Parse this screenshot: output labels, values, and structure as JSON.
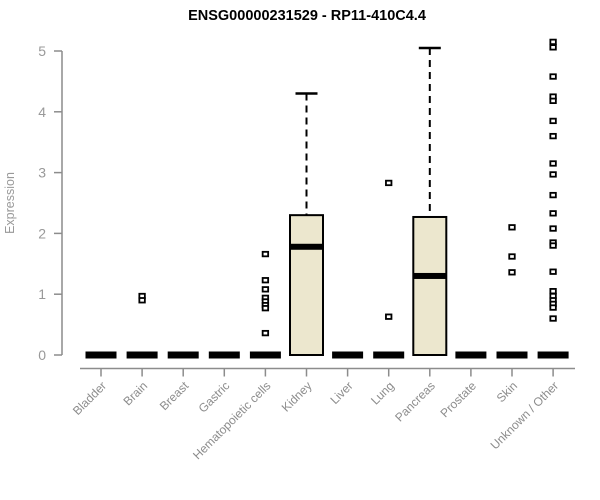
{
  "chart_data": {
    "type": "box",
    "title": "ENSG00000231529 - RP11-410C4.4",
    "ylabel": "Expression",
    "xlabel": "",
    "ylim": [
      0,
      5
    ],
    "y_ticks": [
      0,
      1,
      2,
      3,
      4,
      5
    ],
    "grid": "off",
    "x_tick_rotation": 45,
    "categories": [
      "Bladder",
      "Brain",
      "Breast",
      "Gastric",
      "Hematopoietic cells",
      "Kidney",
      "Liver",
      "Lung",
      "Pancreas",
      "Prostate",
      "Skin",
      "Unknown / Other"
    ],
    "boxes": [
      {
        "category": "Bladder",
        "q1": 0,
        "median": 0,
        "q3": 0,
        "whisker_low": 0,
        "whisker_high": 0,
        "outliers": []
      },
      {
        "category": "Brain",
        "q1": 0,
        "median": 0,
        "q3": 0,
        "whisker_low": 0,
        "whisker_high": 0,
        "outliers": [
          0.97,
          0.9
        ]
      },
      {
        "category": "Breast",
        "q1": 0,
        "median": 0,
        "q3": 0,
        "whisker_low": 0,
        "whisker_high": 0,
        "outliers": []
      },
      {
        "category": "Gastric",
        "q1": 0,
        "median": 0,
        "q3": 0,
        "whisker_low": 0,
        "whisker_high": 0,
        "outliers": []
      },
      {
        "category": "Hematopoietic cells",
        "q1": 0,
        "median": 0,
        "q3": 0,
        "whisker_low": 0,
        "whisker_high": 0,
        "outliers": [
          1.66,
          1.23,
          1.08,
          0.94,
          0.88,
          0.82,
          0.77,
          0.36
        ]
      },
      {
        "category": "Kidney",
        "q1": 0,
        "median": 1.78,
        "q3": 2.3,
        "whisker_low": 0,
        "whisker_high": 4.3,
        "outliers": []
      },
      {
        "category": "Liver",
        "q1": 0,
        "median": 0,
        "q3": 0,
        "whisker_low": 0,
        "whisker_high": 0,
        "outliers": []
      },
      {
        "category": "Lung",
        "q1": 0,
        "median": 0,
        "q3": 0,
        "whisker_low": 0,
        "whisker_high": 0,
        "outliers": [
          2.83,
          0.63
        ]
      },
      {
        "category": "Pancreas",
        "q1": 0,
        "median": 1.3,
        "q3": 2.27,
        "whisker_low": 0,
        "whisker_high": 5.05,
        "outliers": []
      },
      {
        "category": "Prostate",
        "q1": 0,
        "median": 0,
        "q3": 0,
        "whisker_low": 0,
        "whisker_high": 0,
        "outliers": []
      },
      {
        "category": "Skin",
        "q1": 0,
        "median": 0,
        "q3": 0,
        "whisker_low": 0,
        "whisker_high": 0,
        "outliers": [
          2.1,
          1.62,
          1.36
        ]
      },
      {
        "category": "Unknown / Other",
        "q1": 0,
        "median": 0,
        "q3": 0,
        "whisker_low": 0,
        "whisker_high": 0,
        "outliers": [
          5.15,
          5.06,
          4.58,
          4.25,
          4.18,
          3.85,
          3.6,
          3.15,
          2.97,
          2.63,
          2.33,
          2.08,
          1.85,
          1.8,
          1.37,
          1.05,
          0.97,
          0.9,
          0.84,
          0.78,
          0.6
        ]
      }
    ],
    "colors": {
      "box_fill": "#ECE7CE",
      "box_stroke": "#000000",
      "median": "#000000",
      "collapsed_bar": "#000000",
      "outlier_stroke": "#000000",
      "outlier_fill": "#FFFFFF",
      "axis": "#8C8C8C",
      "y_tick_label": "#999999",
      "x_tick_label": "#8C8C8C",
      "title": "#000000",
      "background": "#FFFFFF"
    }
  }
}
